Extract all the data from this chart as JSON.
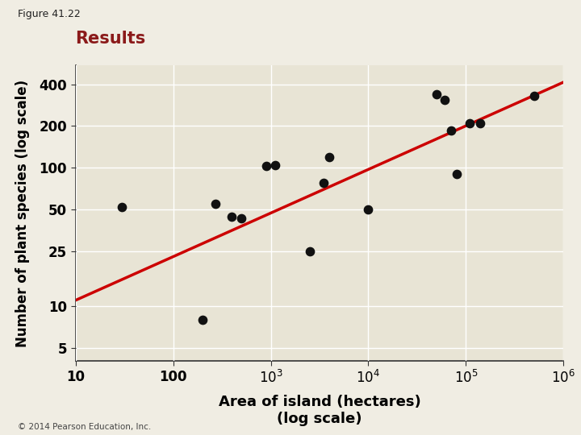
{
  "title": "Results",
  "figure_label": "Figure 41.22",
  "xlabel": "Area of island (hectares)\n(log scale)",
  "ylabel": "Number of plant species (log scale)",
  "fig_bg_color": "#f0ede3",
  "plot_bg_color": "#e8e4d5",
  "title_color": "#8b1a1a",
  "data_points": [
    [
      30,
      52
    ],
    [
      200,
      8
    ],
    [
      270,
      55
    ],
    [
      400,
      44
    ],
    [
      500,
      43
    ],
    [
      900,
      103
    ],
    [
      1100,
      104
    ],
    [
      2500,
      25
    ],
    [
      3500,
      78
    ],
    [
      4000,
      120
    ],
    [
      10000,
      50
    ],
    [
      50000,
      340
    ],
    [
      60000,
      310
    ],
    [
      70000,
      185
    ],
    [
      80000,
      90
    ],
    [
      110000,
      210
    ],
    [
      140000,
      210
    ],
    [
      500000,
      330
    ]
  ],
  "line_x": [
    10,
    1000000
  ],
  "line_y": [
    11,
    415
  ],
  "line_color": "#cc0000",
  "line_width": 2.5,
  "dot_color": "#111111",
  "dot_size": 55,
  "xlim": [
    10,
    1000000
  ],
  "ylim": [
    4,
    550
  ],
  "x_ticks": [
    10,
    100,
    1000,
    10000,
    100000,
    1000000
  ],
  "y_ticks": [
    5,
    10,
    25,
    50,
    100,
    200,
    400
  ],
  "y_tick_labels": [
    "5",
    "10",
    "25",
    "50",
    "100",
    "200",
    "400"
  ],
  "grid_color": "#ffffff",
  "grid_linewidth": 1.0,
  "copyright": "© 2014 Pearson Education, Inc."
}
